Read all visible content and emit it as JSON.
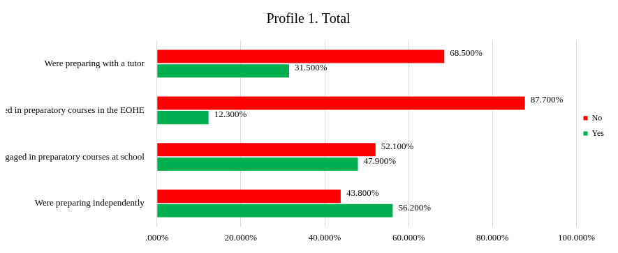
{
  "chart_data": {
    "type": "bar",
    "orientation": "horizontal",
    "title": "Profile 1. Total",
    "categories": [
      "Were preparing with a tutor",
      "Were engaged in preparatory courses in the EOHE",
      "Were engaged in preparatory courses at school",
      "Were preparing independently"
    ],
    "series": [
      {
        "name": "No",
        "color": "#ff0000",
        "values": [
          68.5,
          87.7,
          52.1,
          43.8
        ],
        "value_labels": [
          "68.500%",
          "87.700%",
          "52.100%",
          "43.800%"
        ]
      },
      {
        "name": "Yes",
        "color": "#00b050",
        "values": [
          31.5,
          12.3,
          47.9,
          56.2
        ],
        "value_labels": [
          "31.500%",
          "12.300%",
          "47.900%",
          "56.200%"
        ]
      }
    ],
    "xlim": [
      0,
      100
    ],
    "xticks": [
      {
        "value": 0,
        "label": ".000%"
      },
      {
        "value": 20,
        "label": "20.000%"
      },
      {
        "value": 40,
        "label": "40.000%"
      },
      {
        "value": 60,
        "label": "60.000%"
      },
      {
        "value": 80,
        "label": "80.000%"
      },
      {
        "value": 100,
        "label": "100.000%"
      }
    ],
    "grid": true,
    "legend": "right",
    "data_labels": true
  }
}
